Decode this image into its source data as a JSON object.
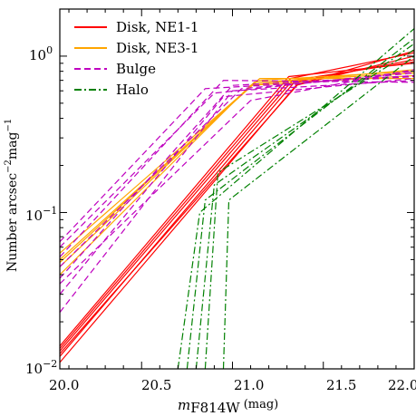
{
  "chart_data": {
    "type": "line",
    "title": "",
    "xlabel": {
      "main": "m",
      "sub": "F814W",
      "unit": "(mag)"
    },
    "ylabel": {
      "main": "Number arcsec",
      "sup1": "−2",
      "mid": "mag",
      "sup2": "−1"
    },
    "x_scale": "linear",
    "y_scale": "log",
    "xlim": [
      20.05,
      22.0
    ],
    "ylim": [
      0.01,
      2.0
    ],
    "x_ticks": [
      20.0,
      20.5,
      21.0,
      21.5,
      22.0
    ],
    "x_tick_labels": [
      "20.0",
      "20.5",
      "21.0",
      "21.5",
      "22.0"
    ],
    "y_ticks": [
      0.01,
      0.1,
      1.0
    ],
    "y_tick_labels": [
      {
        "base": "10",
        "exp": "−2"
      },
      {
        "base": "10",
        "exp": "−1"
      },
      {
        "base": "10",
        "exp": "0"
      }
    ],
    "legend_position": "top-left",
    "series": [
      {
        "name": "Disk, NE1-1",
        "color": "#ff0000",
        "style": "solid",
        "lines": [
          [
            [
              20.05,
              0.011
            ],
            [
              21.35,
              0.65
            ],
            [
              22.0,
              1.0
            ]
          ],
          [
            [
              20.05,
              0.012
            ],
            [
              21.34,
              0.68
            ],
            [
              22.0,
              0.95
            ]
          ],
          [
            [
              20.05,
              0.013
            ],
            [
              21.33,
              0.7
            ],
            [
              22.0,
              0.92
            ]
          ],
          [
            [
              20.05,
              0.0135
            ],
            [
              21.32,
              0.72
            ],
            [
              22.0,
              1.05
            ]
          ],
          [
            [
              20.05,
              0.014
            ],
            [
              21.31,
              0.74
            ],
            [
              22.0,
              0.9
            ]
          ],
          [
            [
              20.05,
              0.0125
            ],
            [
              21.36,
              0.66
            ],
            [
              22.0,
              1.08
            ]
          ]
        ]
      },
      {
        "name": "Disk, NE3-1",
        "color": "#ffa500",
        "style": "solid",
        "lines": [
          [
            [
              20.05,
              0.04
            ],
            [
              21.1,
              0.65
            ],
            [
              22.0,
              0.75
            ]
          ],
          [
            [
              20.05,
              0.045
            ],
            [
              21.12,
              0.68
            ],
            [
              22.0,
              0.78
            ]
          ],
          [
            [
              20.05,
              0.05
            ],
            [
              21.14,
              0.7
            ],
            [
              22.0,
              0.8
            ]
          ],
          [
            [
              20.05,
              0.055
            ],
            [
              21.15,
              0.72
            ],
            [
              22.0,
              0.72
            ]
          ],
          [
            [
              20.05,
              0.048
            ],
            [
              21.11,
              0.66
            ],
            [
              22.0,
              0.82
            ]
          ]
        ]
      },
      {
        "name": "Bulge",
        "color": "#bf00bf",
        "style": "dashed",
        "lines": [
          [
            [
              20.05,
              0.023
            ],
            [
              21.0,
              0.6
            ],
            [
              22.0,
              0.7
            ]
          ],
          [
            [
              20.05,
              0.03
            ],
            [
              20.95,
              0.55
            ],
            [
              22.0,
              0.72
            ]
          ],
          [
            [
              20.05,
              0.038
            ],
            [
              21.0,
              0.65
            ],
            [
              22.0,
              0.75
            ]
          ],
          [
            [
              20.05,
              0.045
            ],
            [
              21.05,
              0.62
            ],
            [
              22.0,
              0.78
            ]
          ],
          [
            [
              20.05,
              0.052
            ],
            [
              20.95,
              0.7
            ],
            [
              22.0,
              0.68
            ]
          ],
          [
            [
              20.05,
              0.06
            ],
            [
              20.9,
              0.58
            ],
            [
              22.0,
              0.8
            ]
          ],
          [
            [
              20.05,
              0.065
            ],
            [
              20.85,
              0.62
            ],
            [
              22.0,
              0.74
            ]
          ],
          [
            [
              20.05,
              0.035
            ],
            [
              21.1,
              0.52
            ],
            [
              22.0,
              0.82
            ]
          ]
        ]
      },
      {
        "name": "Halo",
        "color": "#008000",
        "style": "dashdot",
        "lines": [
          [
            [
              20.7,
              0.01
            ],
            [
              20.82,
              0.1
            ],
            [
              22.0,
              1.5
            ]
          ],
          [
            [
              20.75,
              0.01
            ],
            [
              20.85,
              0.12
            ],
            [
              22.0,
              1.3
            ]
          ],
          [
            [
              20.8,
              0.01
            ],
            [
              20.9,
              0.15
            ],
            [
              22.0,
              1.2
            ]
          ],
          [
            [
              20.85,
              0.01
            ],
            [
              20.92,
              0.18
            ],
            [
              22.0,
              1.1
            ]
          ],
          [
            [
              20.95,
              0.01
            ],
            [
              20.98,
              0.12
            ],
            [
              22.0,
              1.0
            ]
          ]
        ]
      }
    ]
  }
}
